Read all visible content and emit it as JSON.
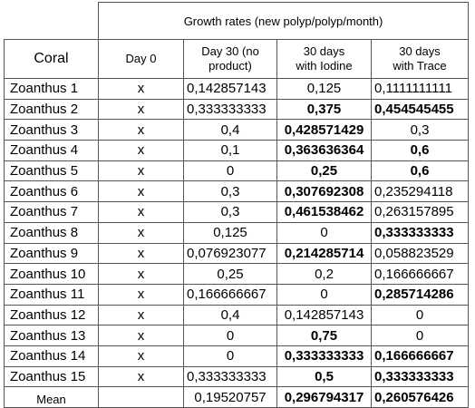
{
  "title": "Growth rates (new polyp/polyp/month)",
  "headers": {
    "coral": "Coral",
    "day0": "Day 0",
    "day30_line1": "Day 30 (no",
    "day30_line2": "product)",
    "iodine_line1": "30 days",
    "iodine_line2": "with Iodine",
    "trace_line1": "30 days",
    "trace_line2": "with Trace"
  },
  "rows": [
    {
      "coral": "Zoanthus 1",
      "day0": "x",
      "day30": "0,142857143",
      "iodine": "0,125",
      "trace": "0,1111111111"
    },
    {
      "coral": "Zoanthus 2",
      "day0": "x",
      "day30": "0,333333333",
      "iodine": "0,375",
      "trace": "0,454545455"
    },
    {
      "coral": "Zoanthus 3",
      "day0": "x",
      "day30": "0,4",
      "iodine": "0,428571429",
      "trace": "0,3"
    },
    {
      "coral": "Zoanthus 4",
      "day0": "x",
      "day30": "0,1",
      "iodine": "0,363636364",
      "trace": "0,6"
    },
    {
      "coral": "Zoanthus 5",
      "day0": "x",
      "day30": "0",
      "iodine": "0,25",
      "trace": "0,6"
    },
    {
      "coral": "Zoanthus 6",
      "day0": "x",
      "day30": "0,3",
      "iodine": "0,307692308",
      "trace": "0,235294118"
    },
    {
      "coral": "Zoanthus 7",
      "day0": "x",
      "day30": "0,3",
      "iodine": "0,461538462",
      "trace": "0,263157895"
    },
    {
      "coral": "Zoanthus 8",
      "day0": "x",
      "day30": "0,125",
      "iodine": "0",
      "trace": "0,333333333"
    },
    {
      "coral": "Zoanthus 9",
      "day0": "x",
      "day30": "0,076923077",
      "iodine": "0,214285714",
      "trace": "0,058823529"
    },
    {
      "coral": "Zoanthus 10",
      "day0": "x",
      "day30": "0,25",
      "iodine": "0,2",
      "trace": "0,166666667"
    },
    {
      "coral": "Zoanthus 11",
      "day0": "x",
      "day30": "0,166666667",
      "iodine": "0",
      "trace": "0,285714286"
    },
    {
      "coral": "Zoanthus 12",
      "day0": "x",
      "day30": "0,4",
      "iodine": "0,142857143",
      "trace": "0"
    },
    {
      "coral": "Zoanthus 13",
      "day0": "x",
      "day30": "0",
      "iodine": "0,75",
      "trace": "0"
    },
    {
      "coral": "Zoanthus 14",
      "day0": "x",
      "day30": "0",
      "iodine": "0,333333333",
      "trace": "0,166666667"
    },
    {
      "coral": "Zoanthus 15",
      "day0": "x",
      "day30": "0,333333333",
      "iodine": "0,5",
      "trace": "0,333333333"
    }
  ],
  "mean": {
    "label": "Mean",
    "day0": "",
    "day30": "0,19520757",
    "iodine": "0,296794317",
    "trace": "0,260576426"
  }
}
